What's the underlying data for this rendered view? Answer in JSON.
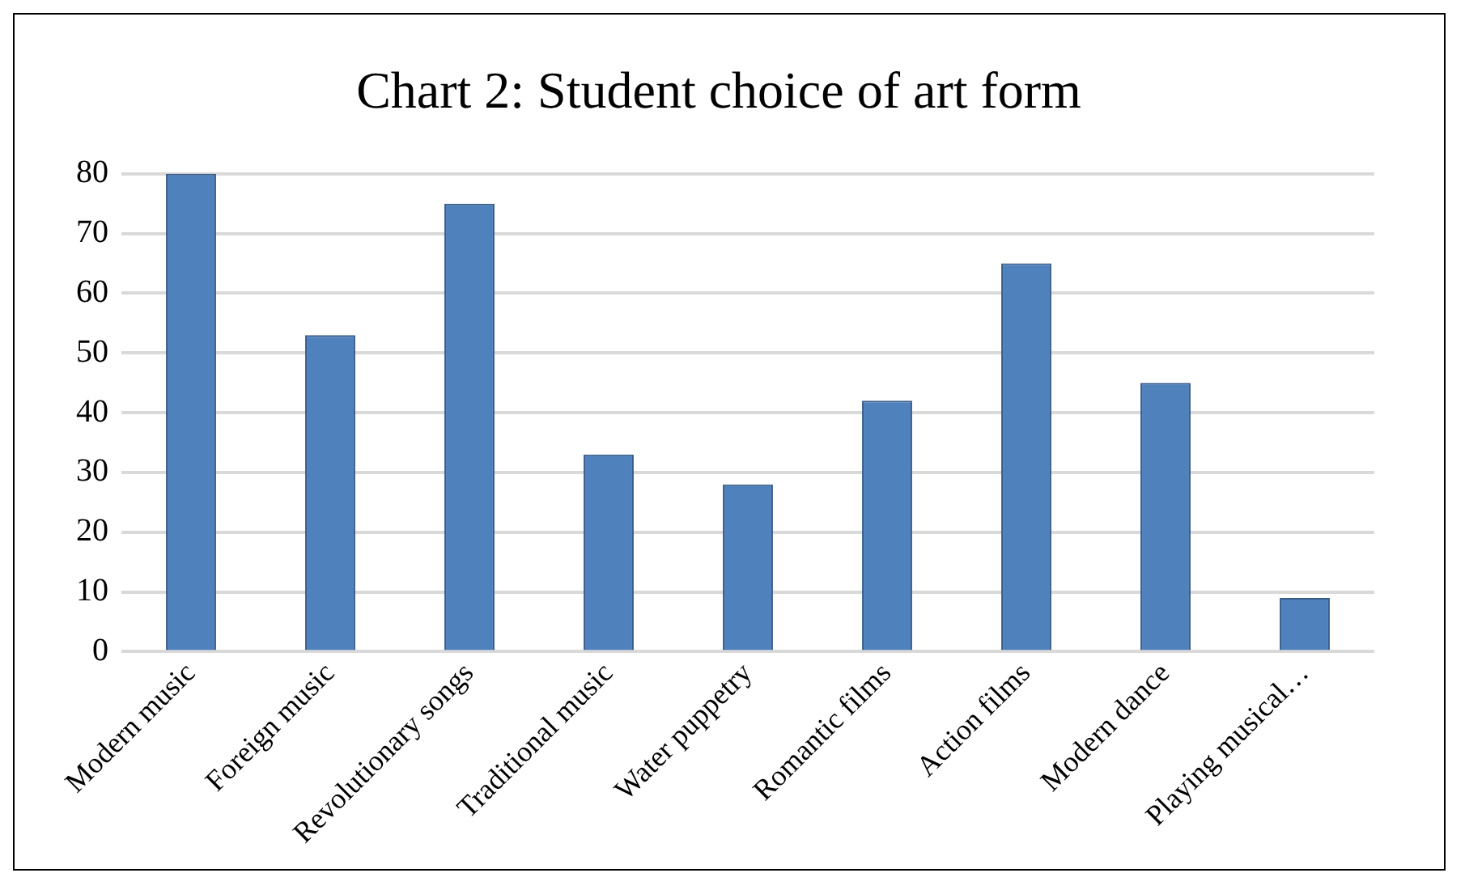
{
  "chart_data": {
    "type": "bar",
    "title": "Chart 2: Student choice of art form",
    "categories": [
      "Modern music",
      "Foreign music",
      "Revolutionary songs",
      "Traditional music",
      "Water puppetry",
      "Romantic films",
      "Action films",
      "Modern dance",
      "Playing musical…"
    ],
    "values": [
      80,
      53,
      75,
      33,
      28,
      42,
      65,
      45,
      9
    ],
    "color": "#4f81bd",
    "ylim": [
      0,
      80
    ],
    "yticks": [
      0,
      10,
      20,
      30,
      40,
      50,
      60,
      70,
      80
    ],
    "grid": "y",
    "legend": false
  }
}
